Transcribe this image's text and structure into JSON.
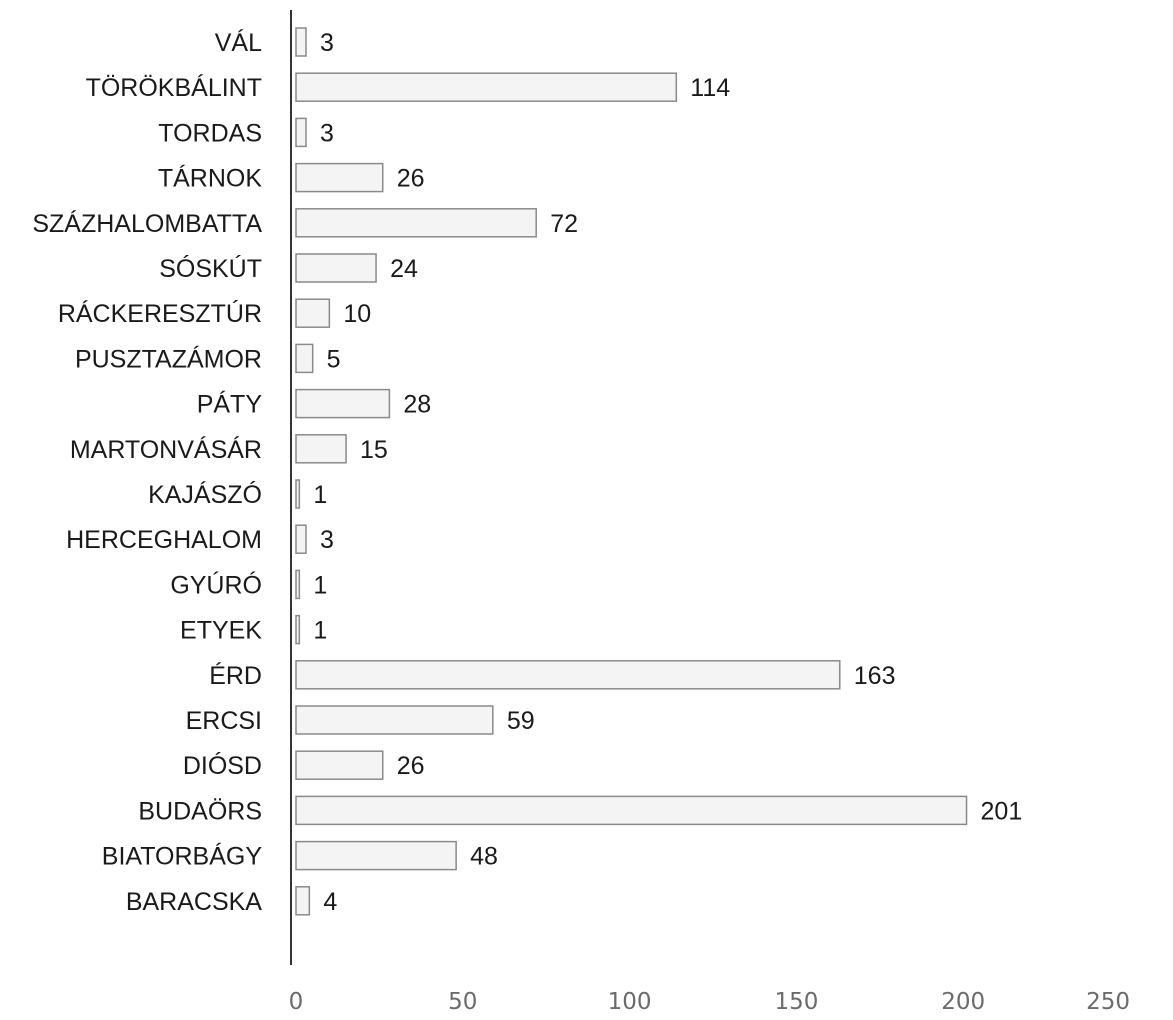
{
  "chart_data": {
    "type": "bar",
    "orientation": "horizontal",
    "categories": [
      "VÁL",
      "TÖRÖKBÁLINT",
      "TORDAS",
      "TÁRNOK",
      "SZÁZHALOMBATTA",
      "SÓSKÚT",
      "RÁCKERESZTÚR",
      "PUSZTAZÁMOR",
      "PÁTY",
      "MARTONVÁSÁR",
      "KAJÁSZÓ",
      "HERCEGHALOM",
      "GYÚRÓ",
      "ETYEK",
      "ÉRD",
      "ERCSI",
      "DIÓSD",
      "BUDAÖRS",
      "BIATORBÁGY",
      "BARACSKA"
    ],
    "values": [
      3,
      114,
      3,
      26,
      72,
      24,
      10,
      5,
      28,
      15,
      1,
      3,
      1,
      1,
      163,
      59,
      26,
      201,
      48,
      4
    ],
    "xlim": [
      0,
      250
    ],
    "xticks": [
      0,
      50,
      100,
      150,
      200,
      250
    ],
    "grid": false,
    "data_labels": true,
    "colors": {
      "bar_fill": "#f4f4f4",
      "bar_stroke": "#8a8a8a",
      "axis": "#333333"
    }
  }
}
